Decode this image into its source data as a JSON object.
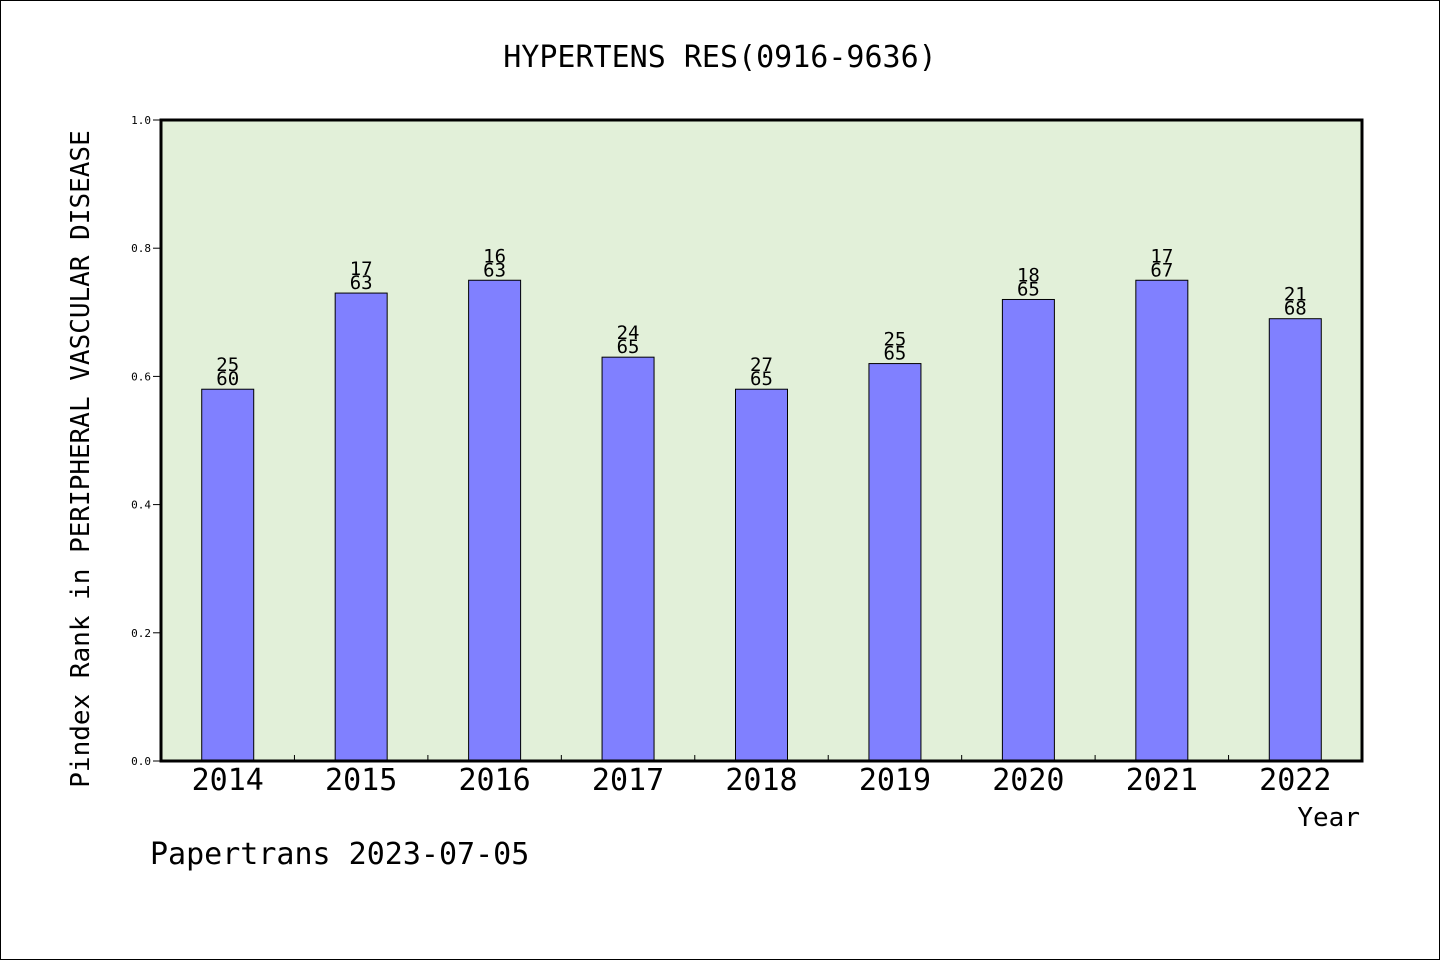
{
  "chart_data": {
    "type": "bar",
    "title": "HYPERTENS RES(0916-9636)",
    "xlabel": "Year",
    "ylabel": "Pindex Rank in PERIPHERAL VASCULAR DISEASE",
    "categories": [
      "2014",
      "2015",
      "2016",
      "2017",
      "2018",
      "2019",
      "2020",
      "2021",
      "2022"
    ],
    "values": [
      0.58,
      0.73,
      0.75,
      0.63,
      0.58,
      0.62,
      0.72,
      0.75,
      0.69
    ],
    "rank_labels": [
      "25",
      "17",
      "16",
      "24",
      "27",
      "25",
      "18",
      "17",
      "21"
    ],
    "total_labels": [
      "60",
      "63",
      "63",
      "65",
      "65",
      "65",
      "65",
      "67",
      "68"
    ],
    "ylim": [
      0,
      1.0
    ],
    "yticks": [
      "0.0",
      "0.2",
      "0.4",
      "0.6",
      "0.8",
      "1.0"
    ],
    "grid": false,
    "legend": "none"
  },
  "footer": "Papertrans 2023-07-05",
  "colors": {
    "plot_background": "#e2f0d9",
    "bar_fill": "#8080ff",
    "bar_stroke": "#000000"
  }
}
